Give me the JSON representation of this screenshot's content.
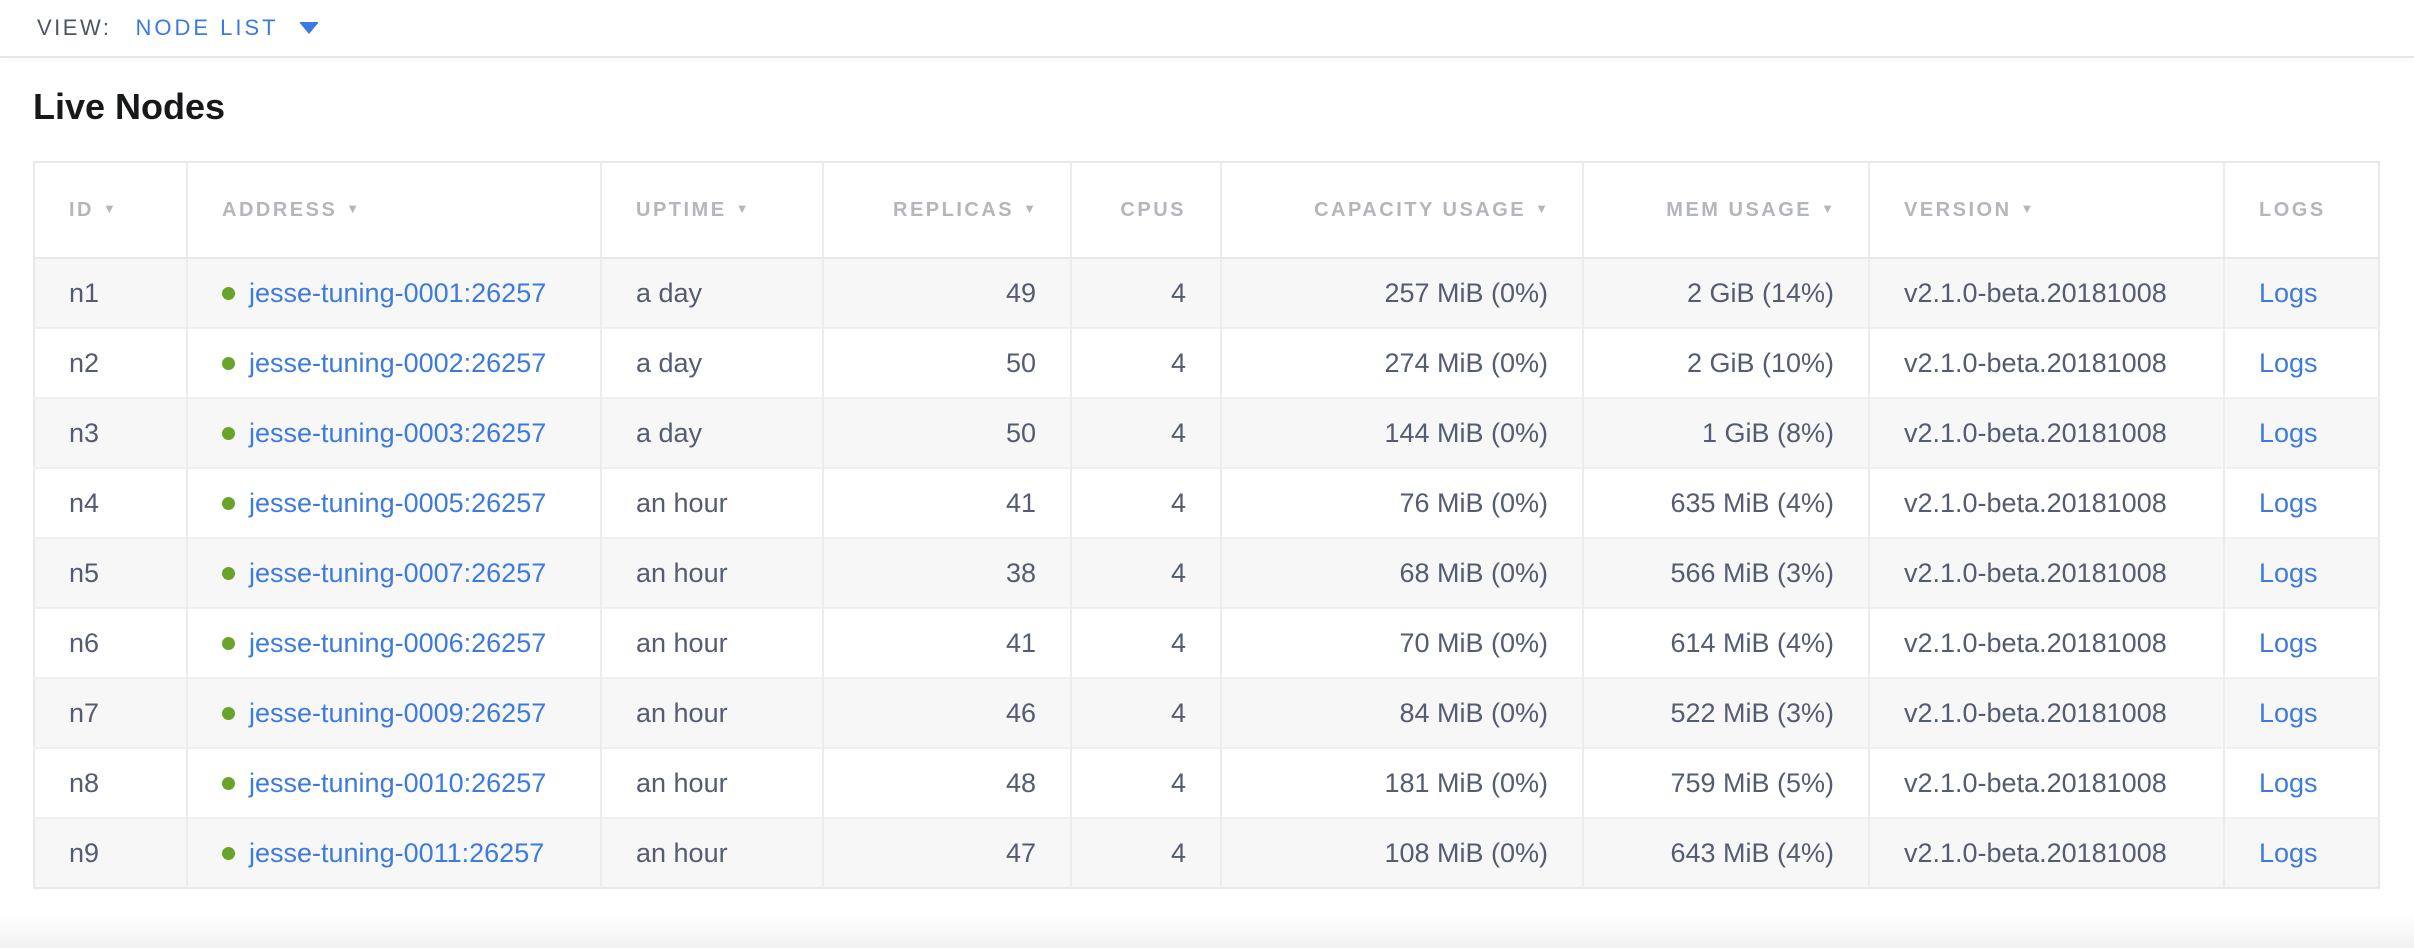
{
  "view_bar": {
    "label": "VIEW:",
    "selected": "NODE LIST"
  },
  "page": {
    "title": "Live Nodes"
  },
  "table": {
    "sort_indicator": "▼",
    "columns": [
      {
        "key": "id",
        "label": "ID",
        "sorted": true,
        "align": "left"
      },
      {
        "key": "address",
        "label": "ADDRESS",
        "sorted": true,
        "align": "left"
      },
      {
        "key": "uptime",
        "label": "UPTIME",
        "sorted": true,
        "align": "left"
      },
      {
        "key": "replicas",
        "label": "REPLICAS",
        "sorted": true,
        "align": "right"
      },
      {
        "key": "cpus",
        "label": "CPUS",
        "sorted": false,
        "align": "right"
      },
      {
        "key": "capacity",
        "label": "CAPACITY USAGE",
        "sorted": true,
        "align": "right"
      },
      {
        "key": "mem",
        "label": "MEM USAGE",
        "sorted": true,
        "align": "right"
      },
      {
        "key": "version",
        "label": "VERSION",
        "sorted": true,
        "align": "left"
      },
      {
        "key": "logs",
        "label": "LOGS",
        "sorted": false,
        "align": "left"
      }
    ],
    "rows": [
      {
        "id": "n1",
        "status": "live",
        "address": "jesse-tuning-0001:26257",
        "uptime": "a day",
        "replicas": "49",
        "cpus": "4",
        "capacity": "257 MiB (0%)",
        "mem": "2 GiB (14%)",
        "version": "v2.1.0-beta.20181008",
        "logs": "Logs"
      },
      {
        "id": "n2",
        "status": "live",
        "address": "jesse-tuning-0002:26257",
        "uptime": "a day",
        "replicas": "50",
        "cpus": "4",
        "capacity": "274 MiB (0%)",
        "mem": "2 GiB (10%)",
        "version": "v2.1.0-beta.20181008",
        "logs": "Logs"
      },
      {
        "id": "n3",
        "status": "live",
        "address": "jesse-tuning-0003:26257",
        "uptime": "a day",
        "replicas": "50",
        "cpus": "4",
        "capacity": "144 MiB (0%)",
        "mem": "1 GiB (8%)",
        "version": "v2.1.0-beta.20181008",
        "logs": "Logs"
      },
      {
        "id": "n4",
        "status": "live",
        "address": "jesse-tuning-0005:26257",
        "uptime": "an hour",
        "replicas": "41",
        "cpus": "4",
        "capacity": "76 MiB (0%)",
        "mem": "635 MiB (4%)",
        "version": "v2.1.0-beta.20181008",
        "logs": "Logs"
      },
      {
        "id": "n5",
        "status": "live",
        "address": "jesse-tuning-0007:26257",
        "uptime": "an hour",
        "replicas": "38",
        "cpus": "4",
        "capacity": "68 MiB (0%)",
        "mem": "566 MiB (3%)",
        "version": "v2.1.0-beta.20181008",
        "logs": "Logs"
      },
      {
        "id": "n6",
        "status": "live",
        "address": "jesse-tuning-0006:26257",
        "uptime": "an hour",
        "replicas": "41",
        "cpus": "4",
        "capacity": "70 MiB (0%)",
        "mem": "614 MiB (4%)",
        "version": "v2.1.0-beta.20181008",
        "logs": "Logs"
      },
      {
        "id": "n7",
        "status": "live",
        "address": "jesse-tuning-0009:26257",
        "uptime": "an hour",
        "replicas": "46",
        "cpus": "4",
        "capacity": "84 MiB (0%)",
        "mem": "522 MiB (3%)",
        "version": "v2.1.0-beta.20181008",
        "logs": "Logs"
      },
      {
        "id": "n8",
        "status": "live",
        "address": "jesse-tuning-0010:26257",
        "uptime": "an hour",
        "replicas": "48",
        "cpus": "4",
        "capacity": "181 MiB (0%)",
        "mem": "759 MiB (5%)",
        "version": "v2.1.0-beta.20181008",
        "logs": "Logs"
      },
      {
        "id": "n9",
        "status": "live",
        "address": "jesse-tuning-0011:26257",
        "uptime": "an hour",
        "replicas": "47",
        "cpus": "4",
        "capacity": "108 MiB (0%)",
        "mem": "643 MiB (4%)",
        "version": "v2.1.0-beta.20181008",
        "logs": "Logs"
      }
    ]
  },
  "colors": {
    "accent_blue": "#3d7ae0",
    "live_green": "#6aa329",
    "header_gray": "#b3b6bb",
    "cell_slate": "#545c71"
  }
}
